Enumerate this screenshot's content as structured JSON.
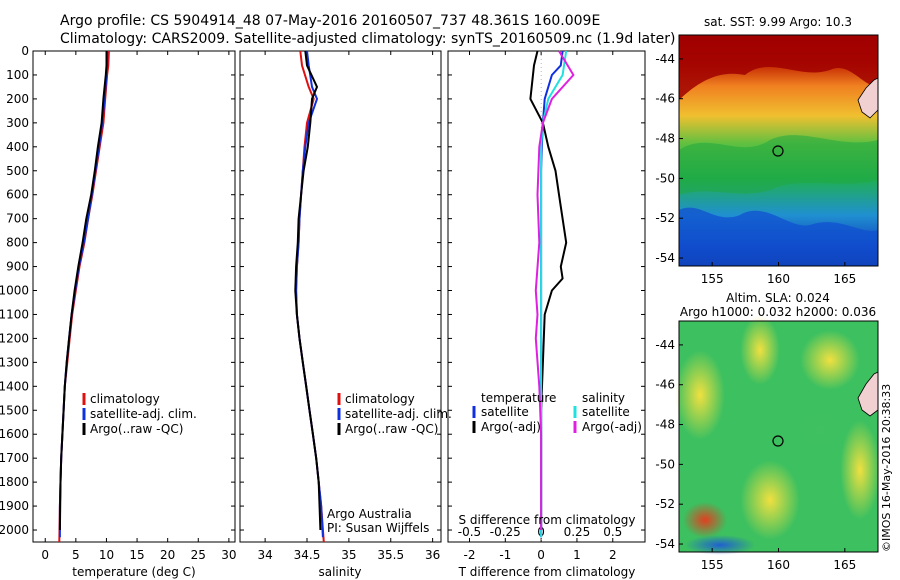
{
  "header": {
    "line1": "Argo profile: CS 5904914_48 07-May-2016 20160507_737 48.361S 160.009E",
    "line2": "Climatology: CARS2009. Satellite-adjusted climatology: synTS_20160509.nc (1.9d later)"
  },
  "colors": {
    "climatology": "#e01010",
    "satellite": "#1030e0",
    "argo": "#000000",
    "sal_satellite": "#20e0e0",
    "sal_argo": "#e020e0"
  },
  "chart_data": [
    {
      "type": "line",
      "xlabel": "temperature (deg C)",
      "ylim": [
        2050,
        0
      ],
      "xlim": [
        -2,
        31
      ],
      "yticks": [
        "0",
        "100",
        "200",
        "300",
        "400",
        "500",
        "600",
        "700",
        "800",
        "900",
        "1000",
        "1100",
        "1200",
        "1300",
        "1400",
        "1500",
        "1600",
        "1700",
        "1800",
        "1900",
        "2000"
      ],
      "xticks": [
        "0",
        "5",
        "10",
        "15",
        "20",
        "25",
        "30"
      ],
      "legend": [
        "climatology",
        "satellite-adj. clim.",
        "Argo(..raw -QC)"
      ],
      "series": [
        {
          "name": "climatology",
          "x": [
            10.4,
            10.3,
            10.1,
            9.8,
            9.5,
            8.9,
            8.3,
            7.7,
            7.0,
            6.4,
            5.6,
            5.0,
            4.4,
            4.0,
            3.6,
            3.2,
            3.0,
            2.8,
            2.6,
            2.5,
            2.4,
            2.3
          ],
          "y": [
            0,
            60,
            100,
            200,
            300,
            400,
            500,
            600,
            700,
            800,
            900,
            1000,
            1100,
            1200,
            1300,
            1400,
            1500,
            1600,
            1700,
            1800,
            1900,
            2050
          ]
        },
        {
          "name": "satellite-adj. clim.",
          "x": [
            10.1,
            10.1,
            10.0,
            9.7,
            9.3,
            8.8,
            8.2,
            7.6,
            7.0,
            6.3,
            5.5,
            4.9,
            4.3,
            3.9,
            3.5,
            3.2,
            3.0,
            2.8,
            2.6,
            2.5,
            2.4,
            2.4
          ],
          "y": [
            0,
            60,
            100,
            200,
            300,
            400,
            500,
            600,
            700,
            800,
            900,
            1000,
            1100,
            1200,
            1300,
            1400,
            1500,
            1600,
            1700,
            1800,
            1900,
            2030
          ]
        },
        {
          "name": "Argo(..raw -QC)",
          "x": [
            10.0,
            10.0,
            9.9,
            9.5,
            9.2,
            8.6,
            8.1,
            7.5,
            6.7,
            6.1,
            5.4,
            4.8,
            4.3,
            3.9,
            3.5,
            3.2,
            3.0,
            2.8,
            2.6,
            2.5,
            2.4
          ],
          "y": [
            0,
            60,
            100,
            200,
            300,
            400,
            500,
            600,
            700,
            800,
            900,
            1000,
            1100,
            1200,
            1300,
            1400,
            1500,
            1600,
            1700,
            1800,
            2000
          ]
        }
      ]
    },
    {
      "type": "line",
      "xlabel": "salinity",
      "ylim": [
        2050,
        0
      ],
      "xlim": [
        33.7,
        36.1
      ],
      "xticks": [
        "34",
        "34.5",
        "35",
        "35.5",
        "36"
      ],
      "legend": [
        "climatology",
        "satellite-adj. clim.",
        "Argo(..raw -QC)"
      ],
      "annotation": [
        "Argo Australia",
        "PI: Susan Wijffels"
      ],
      "series": [
        {
          "name": "climatology",
          "x": [
            34.42,
            34.44,
            34.52,
            34.58,
            34.5,
            34.47,
            34.45,
            34.43,
            34.41,
            34.4,
            34.38,
            34.37,
            34.38,
            34.41,
            34.45,
            34.49,
            34.53,
            34.57,
            34.61,
            34.64,
            34.67,
            34.7
          ],
          "y": [
            0,
            60,
            150,
            200,
            300,
            400,
            500,
            600,
            700,
            800,
            900,
            1000,
            1100,
            1200,
            1300,
            1400,
            1500,
            1600,
            1700,
            1800,
            1900,
            2050
          ]
        },
        {
          "name": "satellite-adj. clim.",
          "x": [
            34.5,
            34.52,
            34.56,
            34.62,
            34.52,
            34.48,
            34.45,
            34.43,
            34.41,
            34.4,
            34.38,
            34.37,
            34.38,
            34.41,
            34.45,
            34.49,
            34.53,
            34.57,
            34.61,
            34.64,
            34.67,
            34.69
          ],
          "y": [
            0,
            60,
            150,
            200,
            300,
            400,
            500,
            600,
            700,
            800,
            900,
            1000,
            1100,
            1200,
            1300,
            1400,
            1500,
            1600,
            1700,
            1800,
            1900,
            2030
          ]
        },
        {
          "name": "Argo(..raw -QC)",
          "x": [
            34.48,
            34.5,
            34.62,
            34.56,
            34.54,
            34.51,
            34.46,
            34.43,
            34.4,
            34.39,
            34.37,
            34.36,
            34.38,
            34.41,
            34.45,
            34.49,
            34.53,
            34.57,
            34.61,
            34.64,
            34.66
          ],
          "y": [
            0,
            60,
            150,
            200,
            300,
            400,
            500,
            600,
            700,
            800,
            900,
            1000,
            1100,
            1200,
            1300,
            1400,
            1500,
            1600,
            1700,
            1800,
            2000
          ]
        }
      ]
    },
    {
      "type": "line",
      "xlabel": "T difference from climatology",
      "xlabel_top": "S difference from climatology",
      "ylim": [
        2050,
        0
      ],
      "xlim": [
        -2.6,
        2.9
      ],
      "xticks": [
        "-2",
        "-1",
        "0",
        "1",
        "2"
      ],
      "xticks_top": [
        "-0.5",
        "-0.25",
        "0",
        "0.25",
        "0.5"
      ],
      "legend_temperature": [
        "temperature",
        "satellite",
        "Argo(-adj)"
      ],
      "legend_salinity": [
        "salinity",
        "satellite",
        "Argo(-adj)"
      ],
      "series": [
        {
          "name": "temperature satellite",
          "x": [
            0.6,
            0.55,
            0.3,
            0.1,
            0.05,
            0.02,
            0.0,
            0.0,
            0.0,
            0.0,
            0.0,
            0.0,
            0.0,
            0.0,
            0.0,
            0.0,
            0.0
          ],
          "y": [
            0,
            60,
            100,
            200,
            300,
            400,
            500,
            600,
            700,
            800,
            900,
            1000,
            1200,
            1400,
            1600,
            1800,
            2030
          ]
        },
        {
          "name": "temperature Argo(-adj)",
          "x": [
            -0.1,
            -0.2,
            -0.3,
            0.05,
            0.2,
            0.4,
            0.5,
            0.6,
            0.7,
            0.55,
            0.6,
            0.3,
            0.1,
            0.05,
            0.0,
            0.0,
            0.0
          ],
          "y": [
            0,
            60,
            200,
            300,
            400,
            500,
            600,
            700,
            800,
            900,
            950,
            1000,
            1100,
            1300,
            1500,
            1800,
            2000
          ]
        },
        {
          "name": "salinity satellite",
          "x": [
            0.7,
            0.6,
            0.2,
            0.05,
            0.0,
            0.0,
            0.0,
            0.0,
            0.0,
            0.0,
            0.0,
            0.0,
            0.0,
            0.0
          ],
          "y": [
            0,
            100,
            200,
            300,
            400,
            600,
            800,
            1000,
            1200,
            1400,
            1600,
            1800,
            1900,
            2030
          ]
        },
        {
          "name": "salinity Argo(-adj)",
          "x": [
            0.5,
            0.9,
            0.3,
            0.05,
            -0.05,
            -0.1,
            -0.05,
            -0.15,
            -0.1,
            -0.15,
            -0.05,
            0.0,
            0.0,
            0.0
          ],
          "y": [
            0,
            100,
            200,
            300,
            400,
            600,
            800,
            1000,
            1100,
            1200,
            1400,
            1600,
            1800,
            2000
          ]
        }
      ]
    }
  ],
  "maps": {
    "sst": {
      "title": "sat. SST: 9.99  Argo: 10.3",
      "xticks": [
        "155",
        "160",
        "165"
      ],
      "yticks": [
        "-44",
        "-46",
        "-48",
        "-50",
        "-52",
        "-54"
      ]
    },
    "sla": {
      "title_line1": "Altim. SLA: 0.024",
      "title_line2": "Argo h1000: 0.032 h2000: 0.036",
      "xticks": [
        "155",
        "160",
        "165"
      ],
      "yticks": [
        "-44",
        "-46",
        "-48",
        "-50",
        "-52",
        "-54"
      ]
    }
  },
  "credit": "©IMOS 16-May-2016 20:38:33"
}
